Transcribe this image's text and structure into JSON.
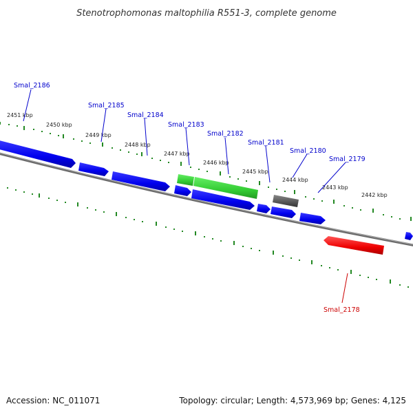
{
  "title": "Stenotrophomonas maltophilia R551-3, complete genome",
  "footer": {
    "accession": "Accession: NC_011071",
    "summary": "Topology: circular; Length: 4,573,969 bp; Genes: 4,125"
  },
  "colors": {
    "forward_gene": "#0000ee",
    "reverse_gene": "#ee0000",
    "highlight_gene": "#33cc33",
    "other_feature": "#555555",
    "backbone": "#777777",
    "ticks": "#228822",
    "forward_label": "#0000cc",
    "reverse_label": "#cc0000"
  },
  "kbp_labels": [
    "2451 kbp",
    "2450 kbp",
    "2449 kbp",
    "2448 kbp",
    "2447 kbp",
    "2446 kbp",
    "2445 kbp",
    "2444 kbp",
    "2443 kbp",
    "2442 kbp"
  ],
  "gene_labels": [
    {
      "name": "Smal_2186",
      "strand": "forward"
    },
    {
      "name": "Smal_2185",
      "strand": "forward"
    },
    {
      "name": "Smal_2184",
      "strand": "forward"
    },
    {
      "name": "Smal_2183",
      "strand": "forward"
    },
    {
      "name": "Smal_2182",
      "strand": "forward"
    },
    {
      "name": "Smal_2181",
      "strand": "forward"
    },
    {
      "name": "Smal_2180",
      "strand": "forward"
    },
    {
      "name": "Smal_2179",
      "strand": "forward"
    },
    {
      "name": "Smal_2178",
      "strand": "reverse"
    }
  ]
}
